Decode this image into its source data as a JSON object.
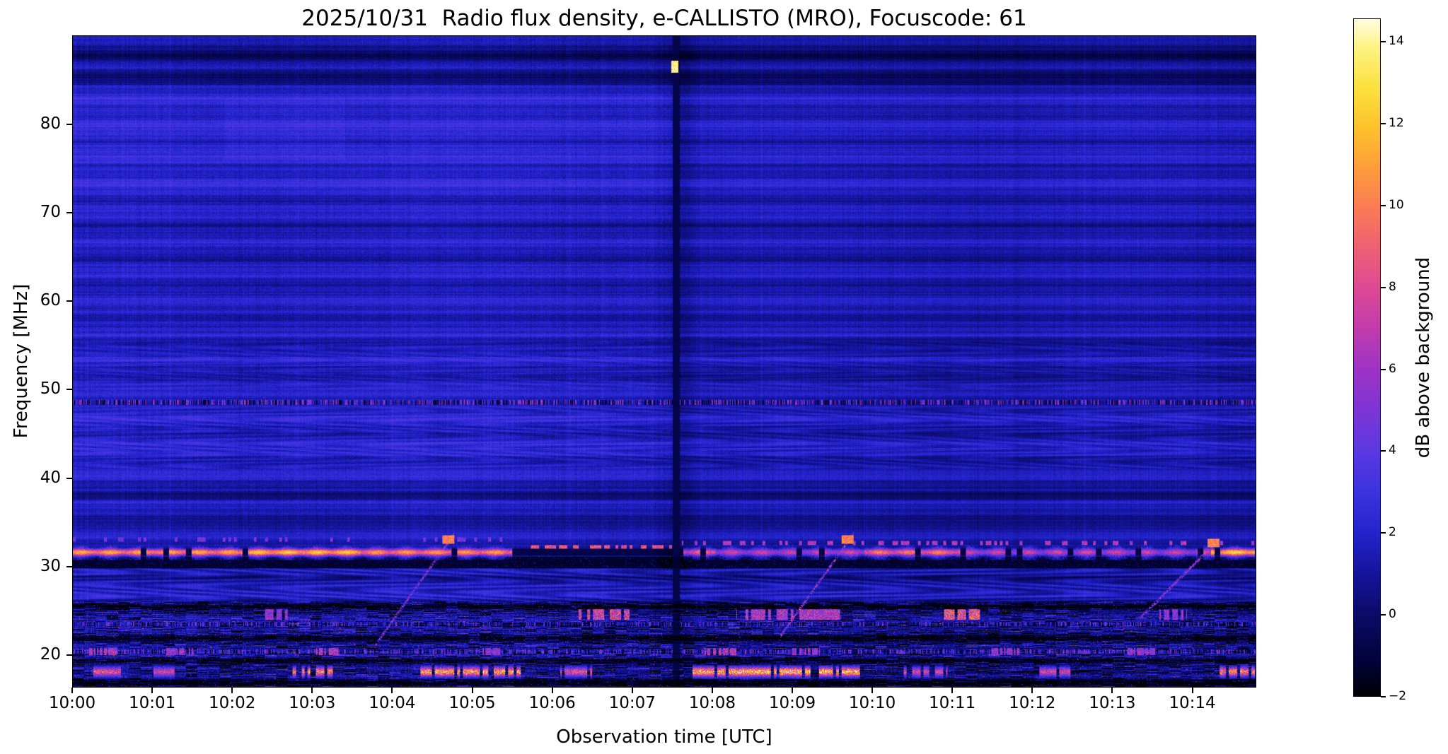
{
  "chart_data": {
    "type": "heatmap",
    "title": "2025/10/31  Radio flux density, e-CALLISTO (MRO), Focuscode: 61",
    "xlabel": "Observation time [UTC]",
    "ylabel": "Frequency [MHz]",
    "colorbar_label": "dB above background",
    "x_range_minutes": [
      0,
      14.8
    ],
    "x_ticks": [
      {
        "m": 0,
        "label": "10:00"
      },
      {
        "m": 1,
        "label": "10:01"
      },
      {
        "m": 2,
        "label": "10:02"
      },
      {
        "m": 3,
        "label": "10:03"
      },
      {
        "m": 4,
        "label": "10:04"
      },
      {
        "m": 5,
        "label": "10:05"
      },
      {
        "m": 6,
        "label": "10:06"
      },
      {
        "m": 7,
        "label": "10:07"
      },
      {
        "m": 8,
        "label": "10:08"
      },
      {
        "m": 9,
        "label": "10:09"
      },
      {
        "m": 10,
        "label": "10:10"
      },
      {
        "m": 11,
        "label": "10:11"
      },
      {
        "m": 12,
        "label": "10:12"
      },
      {
        "m": 13,
        "label": "10:13"
      },
      {
        "m": 14,
        "label": "10:14"
      }
    ],
    "y_range_mhz": [
      16.33,
      90.05
    ],
    "y_ticks": [
      {
        "f": 20,
        "label": "20"
      },
      {
        "f": 30,
        "label": "30"
      },
      {
        "f": 40,
        "label": "40"
      },
      {
        "f": 50,
        "label": "50"
      },
      {
        "f": 60,
        "label": "60"
      },
      {
        "f": 70,
        "label": "70"
      },
      {
        "f": 80,
        "label": "80"
      }
    ],
    "value_range_db": [
      -2,
      14.57
    ],
    "colorbar_ticks": [
      {
        "v": -2,
        "label": "−2"
      },
      {
        "v": 0,
        "label": "0"
      },
      {
        "v": 2,
        "label": "2"
      },
      {
        "v": 4,
        "label": "4"
      },
      {
        "v": 6,
        "label": "6"
      },
      {
        "v": 8,
        "label": "8"
      },
      {
        "v": 10,
        "label": "10"
      },
      {
        "v": 12,
        "label": "12"
      },
      {
        "v": 14,
        "label": "14"
      }
    ],
    "colormap": [
      [
        0.0,
        "#000004"
      ],
      [
        0.05,
        "#02023a"
      ],
      [
        0.12,
        "#0b0b68"
      ],
      [
        0.18,
        "#14149b"
      ],
      [
        0.24,
        "#2323cd"
      ],
      [
        0.3,
        "#3c32e0"
      ],
      [
        0.36,
        "#5b38e2"
      ],
      [
        0.42,
        "#7c35d6"
      ],
      [
        0.48,
        "#9d32c6"
      ],
      [
        0.54,
        "#bf3bae"
      ],
      [
        0.6,
        "#dd4896"
      ],
      [
        0.66,
        "#ee5f75"
      ],
      [
        0.72,
        "#fb7a55"
      ],
      [
        0.78,
        "#fe9c3c"
      ],
      [
        0.84,
        "#fdc22b"
      ],
      [
        0.9,
        "#fbe13e"
      ],
      [
        0.96,
        "#fdf387"
      ],
      [
        1.0,
        "#fffce0"
      ]
    ],
    "background_db": 1.5,
    "features": {
      "split_time_min": 7.55,
      "vertical_line": {
        "t": 7.55,
        "dark_width": 0.045,
        "shade_width": 0.3,
        "bright_dot": {
          "t": 7.53,
          "f": 86.6,
          "db": 12.5
        }
      },
      "bright_line": {
        "f": 31.55,
        "halfwidth": 0.45,
        "segments": [
          {
            "t0": 0.0,
            "t1": 2.1,
            "db": 10.5
          },
          {
            "t0": 2.1,
            "t1": 3.6,
            "db": 11.5
          },
          {
            "t0": 3.6,
            "t1": 5.5,
            "db": 10.0
          },
          {
            "t0": 7.62,
            "t1": 8.05,
            "db": 8.5
          },
          {
            "t0": 8.05,
            "t1": 9.9,
            "db": 6.5
          },
          {
            "t0": 9.9,
            "t1": 11.15,
            "db": 9.0
          },
          {
            "t0": 11.15,
            "t1": 14.25,
            "db": 6.5
          },
          {
            "t0": 14.25,
            "t1": 14.8,
            "db": 12.0
          }
        ]
      },
      "black_band": {
        "f0": 29.7,
        "f1": 31.05
      },
      "dash_lines": [
        {
          "f": 32.15,
          "t0": 5.6,
          "t1": 7.55,
          "db": 7.5,
          "prob": 0.55
        },
        {
          "f": 32.6,
          "t0": 7.62,
          "t1": 14.8,
          "db": 5.5,
          "prob": 0.3
        },
        {
          "f": 33.0,
          "t0": 0.0,
          "t1": 5.5,
          "db": 4.0,
          "prob": 0.15
        }
      ],
      "speckle_lines": [
        {
          "f": 48.55,
          "halfwidth": 0.3,
          "bright_prob": 0.3,
          "dark_prob": 0.28,
          "db": 5.0
        },
        {
          "f": 20.3,
          "halfwidth": 0.25,
          "bright_prob": 0.25,
          "dark_prob": 0.2,
          "db": 4.5
        },
        {
          "f": 23.4,
          "halfwidth": 0.25,
          "bright_prob": 0.2,
          "dark_prob": 0.25,
          "db": 4.0
        }
      ],
      "sweepers": [
        {
          "t0": 3.78,
          "f0": 21.0,
          "t1": 4.72,
          "f1": 33.0,
          "db": 6.0
        },
        {
          "t0": 8.85,
          "f0": 22.0,
          "t1": 9.72,
          "f1": 33.0,
          "db": 6.5
        },
        {
          "t0": 13.35,
          "f0": 24.0,
          "t1": 14.3,
          "f1": 32.6,
          "db": 6.0
        }
      ],
      "low_bursts_18": [
        {
          "t0": 0.25,
          "t1": 0.6,
          "db": 9
        },
        {
          "t0": 1.0,
          "t1": 1.3,
          "db": 8
        },
        {
          "t0": 2.75,
          "t1": 3.25,
          "db": 11
        },
        {
          "t0": 4.35,
          "t1": 5.6,
          "db": 12
        },
        {
          "t0": 6.1,
          "t1": 6.5,
          "db": 9
        },
        {
          "t0": 7.75,
          "t1": 9.85,
          "db": 12.5
        },
        {
          "t0": 10.4,
          "t1": 10.95,
          "db": 8
        },
        {
          "t0": 12.1,
          "t1": 12.55,
          "db": 8
        },
        {
          "t0": 14.35,
          "t1": 14.8,
          "db": 11
        }
      ],
      "bursts_20": [
        {
          "t0": 0.2,
          "t1": 0.55,
          "db": 7
        },
        {
          "t0": 1.15,
          "t1": 1.5,
          "db": 6
        },
        {
          "t0": 3.0,
          "t1": 3.35,
          "db": 7
        },
        {
          "t0": 5.05,
          "t1": 5.35,
          "db": 6
        },
        {
          "t0": 7.9,
          "t1": 8.3,
          "db": 7
        },
        {
          "t0": 9.0,
          "t1": 9.35,
          "db": 6
        },
        {
          "t0": 11.5,
          "t1": 11.85,
          "db": 6
        },
        {
          "t0": 13.2,
          "t1": 13.55,
          "db": 6
        }
      ],
      "bursts_245": [
        {
          "t0": 2.4,
          "t1": 2.7,
          "db": 6
        },
        {
          "t0": 6.3,
          "t1": 7.0,
          "db": 8
        },
        {
          "t0": 8.3,
          "t1": 9.6,
          "db": 7
        },
        {
          "t0": 10.9,
          "t1": 11.35,
          "db": 9
        },
        {
          "t0": 13.6,
          "t1": 13.95,
          "db": 6
        }
      ],
      "wave_bands": [
        {
          "f0": 25.6,
          "f1": 29.7,
          "amp": 0.85
        },
        {
          "f0": 41.0,
          "f1": 48.0,
          "amp": 0.5
        },
        {
          "f0": 50.0,
          "f1": 55.5,
          "amp": 0.35
        }
      ],
      "dark_rows": [
        {
          "f": 25.45,
          "w": 0.4,
          "db": -2.6
        },
        {
          "f": 21.75,
          "w": 0.35,
          "db": -2.3
        },
        {
          "f": 19.25,
          "w": 0.3,
          "db": -2.0
        },
        {
          "f": 16.9,
          "w": 0.45,
          "db": -2.2
        },
        {
          "f": 85.6,
          "w": 0.5,
          "db": -1.3
        },
        {
          "f": 87.9,
          "w": 0.4,
          "db": -1.5
        },
        {
          "f": 83.9,
          "w": 0.3,
          "db": -0.9
        },
        {
          "f": 37.8,
          "w": 0.35,
          "db": -0.8
        },
        {
          "f": 34.6,
          "w": 0.3,
          "db": -0.6
        },
        {
          "f": 57.2,
          "w": 0.25,
          "db": -0.5
        },
        {
          "f": 64.9,
          "w": 0.2,
          "db": -0.45
        }
      ],
      "bright_patch_topleft": {
        "t0": 1.9,
        "t1": 3.4,
        "f0": 76.0,
        "f1": 83.0,
        "db_add": 0.3
      }
    }
  }
}
